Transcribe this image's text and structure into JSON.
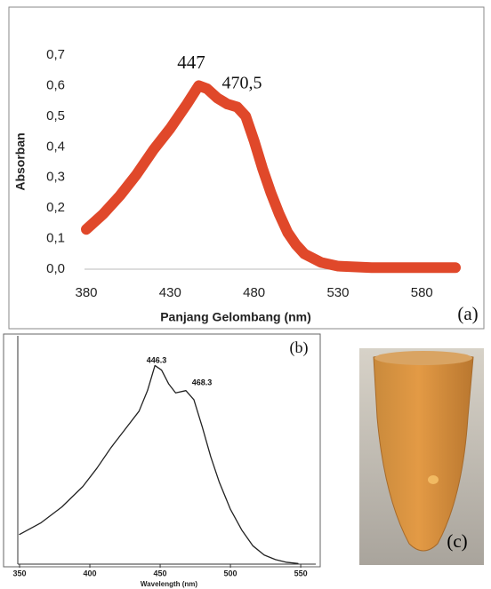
{
  "chart_data": [
    {
      "type": "line",
      "x_label": "Panjang Gelombang (nm)",
      "y_label": "Absorban",
      "panel_label": "(a)",
      "annotations": [
        "447",
        "470,5"
      ],
      "color": "#e0482a",
      "x": [
        380,
        390,
        400,
        410,
        420,
        430,
        440,
        447,
        452,
        458,
        464,
        470,
        475,
        480,
        485,
        490,
        495,
        500,
        505,
        510,
        520,
        530,
        550,
        575,
        600
      ],
      "values": [
        0.13,
        0.18,
        0.24,
        0.31,
        0.39,
        0.46,
        0.54,
        0.6,
        0.59,
        0.56,
        0.54,
        0.53,
        0.5,
        0.42,
        0.33,
        0.25,
        0.18,
        0.12,
        0.08,
        0.05,
        0.022,
        0.01,
        0.005,
        0.005,
        0.005
      ],
      "xlim": [
        380,
        600
      ],
      "xticks": [
        380,
        430,
        480,
        530,
        580
      ],
      "ylim": [
        0,
        0.7
      ],
      "yticks": [
        {
          "value": 0,
          "label": "0,0"
        },
        {
          "value": 0.1,
          "label": "0,1"
        },
        {
          "value": 0.2,
          "label": "0,2"
        },
        {
          "value": 0.3,
          "label": "0,3"
        },
        {
          "value": 0.4,
          "label": "0,4"
        },
        {
          "value": 0.5,
          "label": "0,5"
        },
        {
          "value": 0.6,
          "label": "0,6"
        },
        {
          "value": 0.7,
          "label": "0,7"
        }
      ]
    },
    {
      "type": "line",
      "x_label": "Wavelength (nm)",
      "panel_label": "(b)",
      "annotations": [
        "446.3",
        "468.3"
      ],
      "color": "#222222",
      "x": [
        350,
        365,
        380,
        395,
        405,
        415,
        425,
        435,
        441,
        446.3,
        451,
        456,
        461,
        468.3,
        474,
        480,
        486,
        492,
        500,
        508,
        516,
        524,
        532,
        540,
        548
      ],
      "values": [
        0.13,
        0.18,
        0.25,
        0.34,
        0.42,
        0.51,
        0.59,
        0.67,
        0.76,
        0.87,
        0.85,
        0.79,
        0.75,
        0.76,
        0.72,
        0.6,
        0.47,
        0.36,
        0.24,
        0.15,
        0.08,
        0.04,
        0.02,
        0.008,
        0.003
      ],
      "xlim": [
        350,
        555
      ],
      "xticks": [
        350,
        400,
        450,
        500,
        550
      ],
      "ylim": [
        0,
        1
      ]
    }
  ],
  "photo": {
    "label": "(c)"
  }
}
